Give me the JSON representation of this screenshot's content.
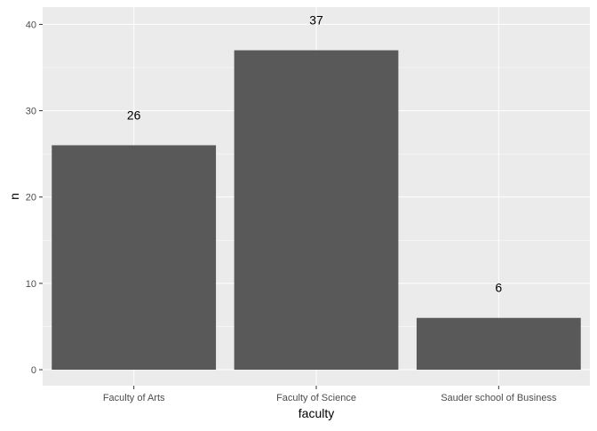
{
  "chart_data": {
    "type": "bar",
    "categories": [
      "Faculty of Arts",
      "Faculty of Science",
      "Sauder school of Business"
    ],
    "values": [
      26,
      37,
      6
    ],
    "data_labels": [
      "26",
      "37",
      "6"
    ],
    "xlabel": "faculty",
    "ylabel": "n",
    "ylim": [
      -1.85,
      42
    ],
    "yticks": [
      0,
      10,
      20,
      30,
      40
    ],
    "grid": true,
    "legend": "none",
    "colors": {
      "panel": "#ebebeb",
      "grid_major": "#ffffff",
      "bar": "#595959",
      "axis_text": "#4d4d4d",
      "title_text": "#000000"
    }
  }
}
